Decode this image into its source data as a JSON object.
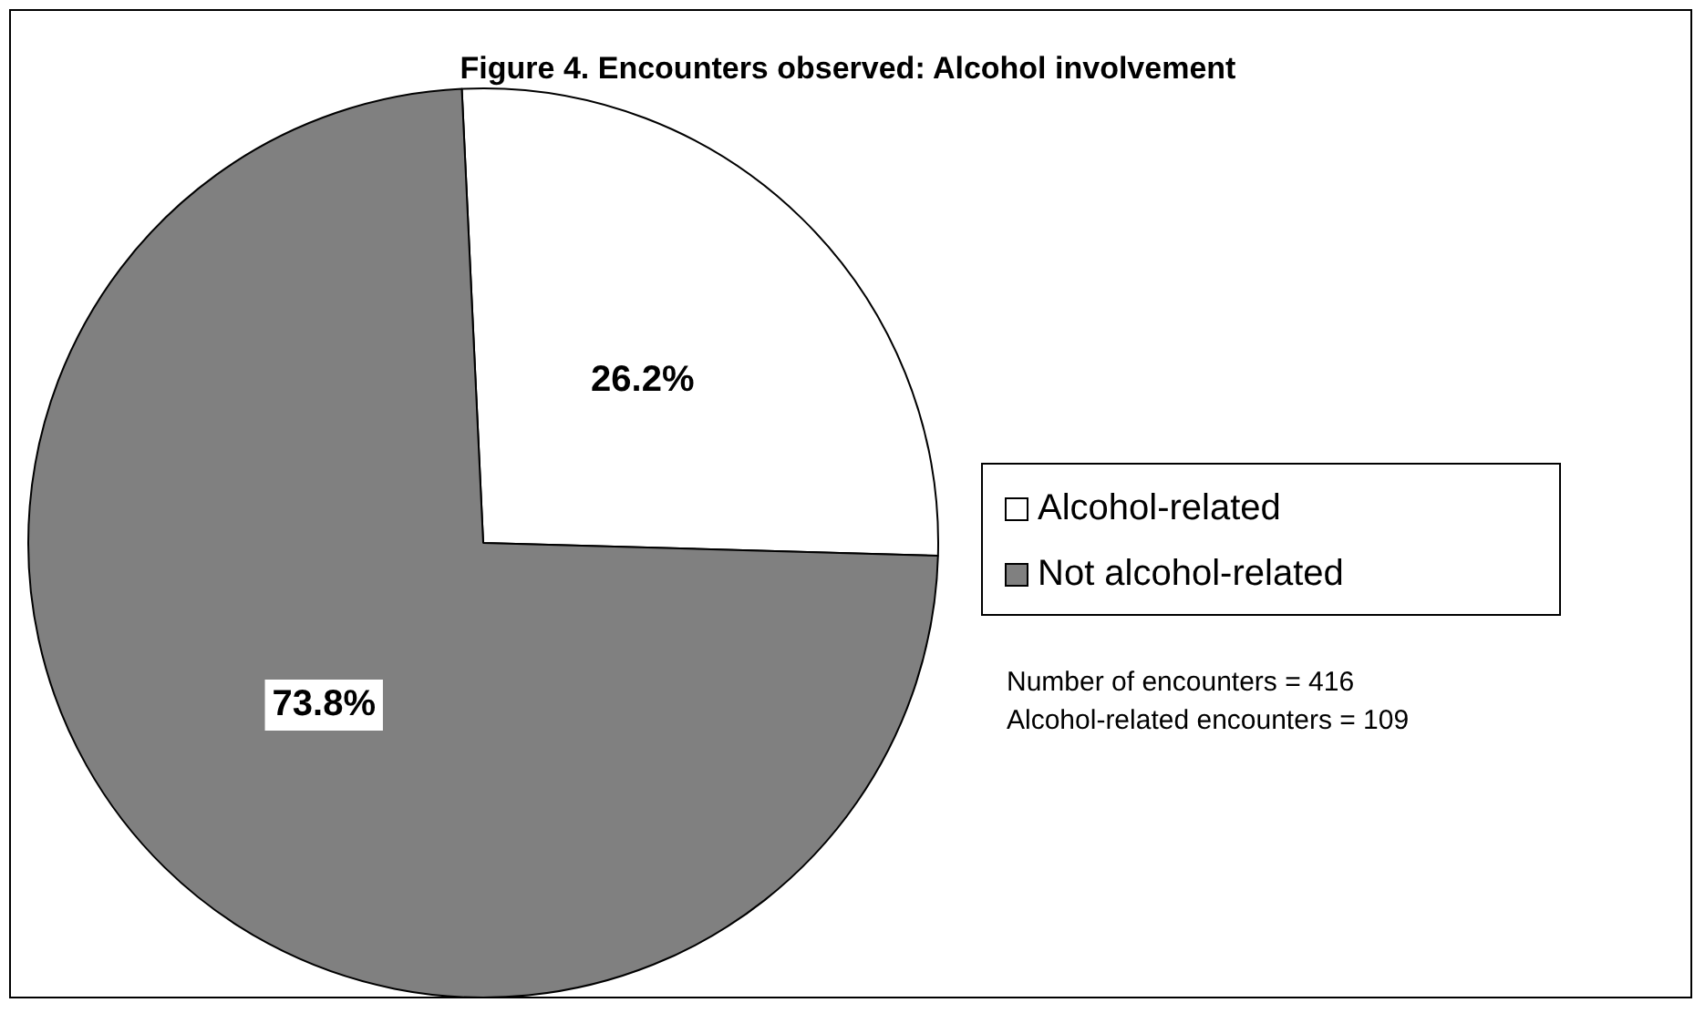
{
  "chart_data": {
    "type": "pie",
    "title": "Figure 4. Encounters observed: Alcohol involvement",
    "categories": [
      "Alcohol-related",
      "Not alcohol-related"
    ],
    "values": [
      26.2,
      73.8
    ],
    "colors": [
      "#ffffff",
      "#808080"
    ],
    "value_labels": [
      "26.2%",
      "73.8%"
    ],
    "legend": "right",
    "annotations": [
      "Number of encounters = 416",
      "Alcohol-related encounters = 109"
    ]
  }
}
